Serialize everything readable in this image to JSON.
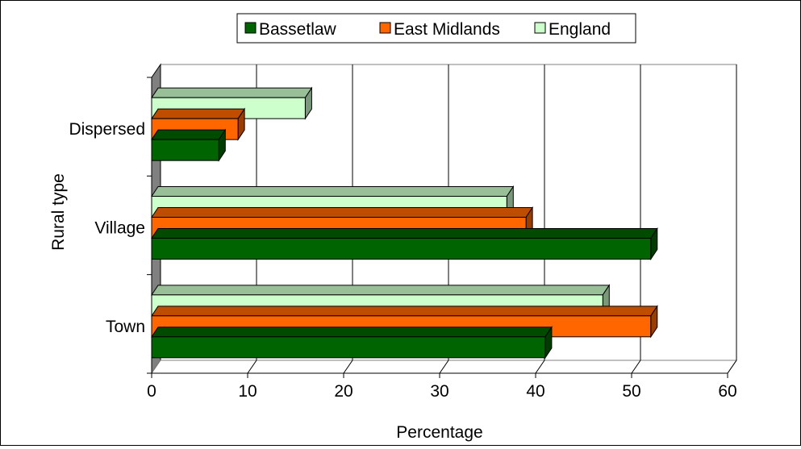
{
  "chart_data": {
    "type": "bar",
    "orientation": "horizontal",
    "style": "3d",
    "categories": [
      "Dispersed",
      "Village",
      "Town"
    ],
    "series": [
      {
        "name": "Bassetlaw",
        "color": "#006400",
        "values": [
          7,
          52,
          41
        ]
      },
      {
        "name": "East Midlands",
        "color": "#ff6600",
        "values": [
          9,
          39,
          52
        ]
      },
      {
        "name": "England",
        "color": "#ccffcc",
        "values": [
          16,
          37,
          47
        ]
      }
    ],
    "xlabel": "Percentage",
    "ylabel": "Rural type",
    "xlim": [
      0,
      60
    ],
    "xticks": [
      "0",
      "10",
      "20",
      "30",
      "40",
      "50",
      "60"
    ],
    "grid": true,
    "legend_position": "top"
  }
}
